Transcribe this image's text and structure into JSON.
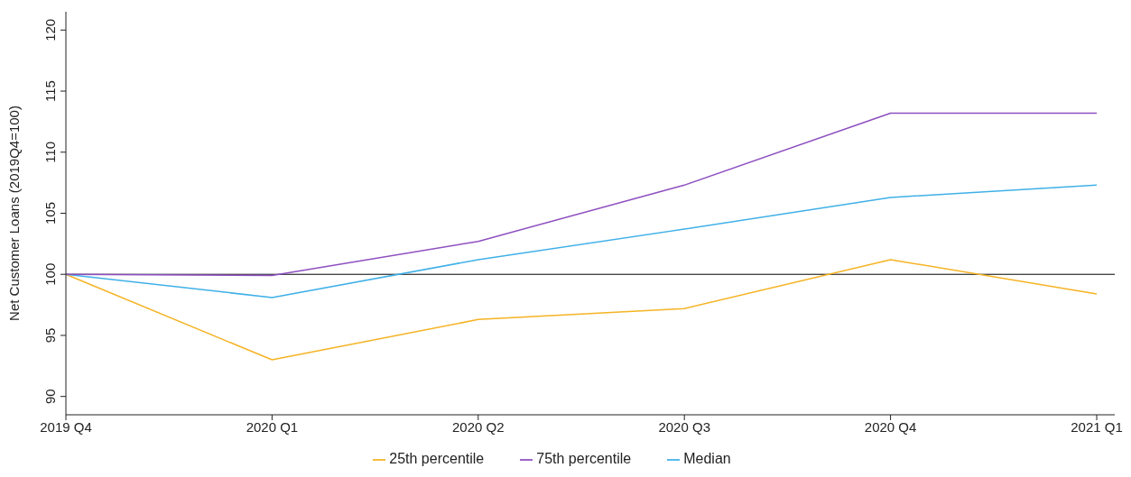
{
  "chart_data": {
    "type": "line",
    "ylabel": "Net Customer Loans (2019Q4=100)",
    "categories": [
      "2019 Q4",
      "2020 Q1",
      "2020 Q2",
      "2020 Q3",
      "2020 Q4",
      "2021 Q1"
    ],
    "series": [
      {
        "name": "25th percentile",
        "color": "#f5b324",
        "values": [
          100,
          93.0,
          96.3,
          97.2,
          101.2,
          98.4
        ]
      },
      {
        "name": "Median",
        "color": "#3fb0e8",
        "values": [
          100,
          98.1,
          101.2,
          103.7,
          106.3,
          107.3
        ]
      },
      {
        "name": "75th percentile",
        "color": "#8e4fc0",
        "values": [
          100,
          99.9,
          102.7,
          107.3,
          113.2,
          113.2
        ]
      }
    ],
    "ylim": [
      88.5,
      121.5
    ],
    "yticks": [
      90,
      95,
      100,
      105,
      110,
      115,
      120
    ],
    "grid": false,
    "legend": "bottom",
    "marker": "none",
    "line_style": "solid",
    "ref_lines": [
      {
        "axis": "y",
        "value": 100,
        "color": "#000000"
      }
    ]
  }
}
